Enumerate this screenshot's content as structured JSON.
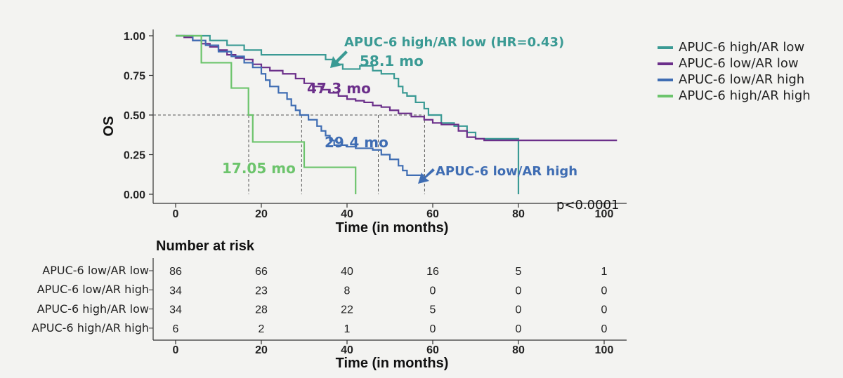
{
  "chart_data": {
    "type": "line",
    "subtype": "kaplan-meier",
    "ylabel": "OS",
    "xlabel": "Time (in months)",
    "xlim": [
      0,
      100
    ],
    "ylim": [
      0,
      1
    ],
    "x_ticks": [
      "0",
      "20",
      "40",
      "60",
      "80",
      "100"
    ],
    "y_ticks": [
      "0.00",
      "0.25",
      "0.50",
      "0.75",
      "1.00"
    ],
    "p_value": "p<0.0001",
    "legend_position": "right",
    "series": [
      {
        "name": "APUC-6 high/AR low",
        "color": "#3a9a94",
        "steps": [
          [
            0,
            1
          ],
          [
            8,
            0.97
          ],
          [
            12,
            0.94
          ],
          [
            16,
            0.91
          ],
          [
            20,
            0.88
          ],
          [
            35,
            0.85
          ],
          [
            37,
            0.82
          ],
          [
            39,
            0.79
          ],
          [
            43,
            0.81
          ],
          [
            46,
            0.78
          ],
          [
            48,
            0.76
          ],
          [
            51,
            0.73
          ],
          [
            52,
            0.68
          ],
          [
            53,
            0.64
          ],
          [
            54,
            0.62
          ],
          [
            56,
            0.58
          ],
          [
            58,
            0.54
          ],
          [
            59,
            0.5
          ],
          [
            62,
            0.45
          ],
          [
            65,
            0.43
          ],
          [
            68,
            0.39
          ],
          [
            70,
            0.35
          ],
          [
            80,
            0.34
          ],
          [
            80,
            0.0
          ]
        ],
        "end": 80,
        "median_label": "58.1 mo",
        "median": 58.1,
        "annotation": "APUC-6 high/AR low  (HR=0.43)"
      },
      {
        "name": "APUC-6 low/AR low",
        "color": "#6b2f8a",
        "steps": [
          [
            0,
            1
          ],
          [
            2,
            0.99
          ],
          [
            4,
            0.97
          ],
          [
            6,
            0.95
          ],
          [
            8,
            0.93
          ],
          [
            10,
            0.91
          ],
          [
            12,
            0.88
          ],
          [
            14,
            0.86
          ],
          [
            16,
            0.85
          ],
          [
            18,
            0.82
          ],
          [
            20,
            0.8
          ],
          [
            22,
            0.78
          ],
          [
            25,
            0.76
          ],
          [
            28,
            0.73
          ],
          [
            30,
            0.7
          ],
          [
            32,
            0.68
          ],
          [
            34,
            0.66
          ],
          [
            36,
            0.64
          ],
          [
            38,
            0.62
          ],
          [
            40,
            0.6
          ],
          [
            42,
            0.59
          ],
          [
            44,
            0.58
          ],
          [
            46,
            0.56
          ],
          [
            48,
            0.55
          ],
          [
            50,
            0.53
          ],
          [
            52,
            0.51
          ],
          [
            55,
            0.49
          ],
          [
            58,
            0.47
          ],
          [
            60,
            0.45
          ],
          [
            62,
            0.44
          ],
          [
            66,
            0.4
          ],
          [
            68,
            0.36
          ],
          [
            70,
            0.35
          ],
          [
            72,
            0.34
          ]
        ],
        "end": 103,
        "median_label": "47.3 mo",
        "median": 47.3
      },
      {
        "name": "APUC-6 low/AR high",
        "color": "#3f6db3",
        "steps": [
          [
            0,
            1
          ],
          [
            4,
            0.97
          ],
          [
            7,
            0.94
          ],
          [
            10,
            0.9
          ],
          [
            13,
            0.87
          ],
          [
            16,
            0.83
          ],
          [
            18,
            0.8
          ],
          [
            20,
            0.76
          ],
          [
            21,
            0.72
          ],
          [
            22,
            0.68
          ],
          [
            24,
            0.64
          ],
          [
            26,
            0.6
          ],
          [
            27,
            0.56
          ],
          [
            28,
            0.53
          ],
          [
            29,
            0.5
          ],
          [
            31,
            0.47
          ],
          [
            33,
            0.43
          ],
          [
            34,
            0.4
          ],
          [
            35,
            0.37
          ],
          [
            36,
            0.34
          ],
          [
            37,
            0.31
          ],
          [
            40,
            0.3
          ],
          [
            42,
            0.29
          ],
          [
            46,
            0.28
          ],
          [
            48,
            0.25
          ],
          [
            50,
            0.22
          ],
          [
            52,
            0.18
          ],
          [
            53,
            0.15
          ],
          [
            54,
            0.12
          ],
          [
            58,
            0.12
          ]
        ],
        "end": 58,
        "median_label": "29.4 mo",
        "median": 29.4,
        "annotation": "APUC-6 low/AR high"
      },
      {
        "name": "APUC-6 high/AR high",
        "color": "#6cc46c",
        "steps": [
          [
            0,
            1
          ],
          [
            6,
            0.83
          ],
          [
            13,
            0.67
          ],
          [
            17,
            0.5
          ],
          [
            18,
            0.33
          ],
          [
            30,
            0.17
          ],
          [
            42,
            0.0
          ]
        ],
        "end": 42,
        "median_label": "17.05 mo",
        "median": 17.05
      }
    ],
    "risk_table": {
      "title": "Number at risk",
      "time_points": [
        "0",
        "20",
        "40",
        "60",
        "80",
        "100"
      ],
      "rows": [
        {
          "label": "APUC-6 low/AR low",
          "values": [
            "86",
            "66",
            "40",
            "16",
            "5",
            "1"
          ]
        },
        {
          "label": "APUC-6 low/AR high",
          "values": [
            "34",
            "23",
            "8",
            "0",
            "0",
            "0"
          ]
        },
        {
          "label": "APUC-6 high/AR low",
          "values": [
            "34",
            "28",
            "22",
            "5",
            "0",
            "0"
          ]
        },
        {
          "label": "APUC-6 high/AR high",
          "values": [
            "6",
            "2",
            "1",
            "0",
            "0",
            "0"
          ]
        }
      ],
      "xlabel": "Time (in months)"
    }
  }
}
